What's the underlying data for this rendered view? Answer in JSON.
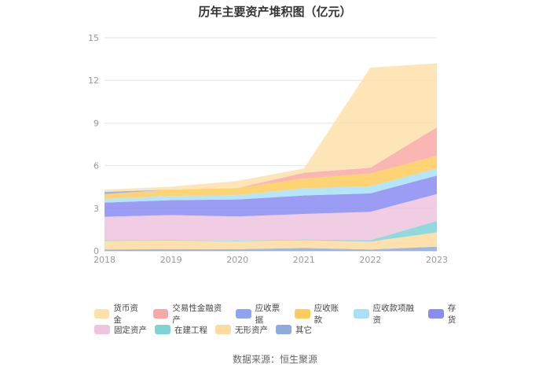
{
  "chart_data": {
    "type": "area",
    "stacked": true,
    "title": "历年主要资产堆积图（亿元）",
    "categories": [
      "2018",
      "2019",
      "2020",
      "2021",
      "2022",
      "2023"
    ],
    "ylim": [
      0,
      15
    ],
    "yticks": [
      0,
      3,
      6,
      9,
      12,
      15
    ],
    "series": [
      {
        "name": "其它",
        "color": "#8FAADC",
        "values": [
          0.1,
          0.12,
          0.12,
          0.2,
          0.1,
          0.3
        ]
      },
      {
        "name": "无形资产",
        "color": "#FDDB9E",
        "values": [
          0.6,
          0.6,
          0.55,
          0.55,
          0.55,
          1.0
        ]
      },
      {
        "name": "在建工程",
        "color": "#7DD3D8",
        "values": [
          0.05,
          0.05,
          0.05,
          0.05,
          0.1,
          0.8
        ]
      },
      {
        "name": "固定资产",
        "color": "#EEC4DE",
        "values": [
          1.65,
          1.75,
          1.7,
          1.8,
          2.0,
          1.9
        ]
      },
      {
        "name": "存货",
        "color": "#8A8CF2",
        "values": [
          1.0,
          1.05,
          1.2,
          1.3,
          1.3,
          1.3
        ]
      },
      {
        "name": "应收款项融资",
        "color": "#A8E0F8",
        "values": [
          0.25,
          0.3,
          0.3,
          0.5,
          0.5,
          0.5
        ]
      },
      {
        "name": "应收账款",
        "color": "#FDCB5C",
        "values": [
          0.35,
          0.45,
          0.5,
          0.7,
          0.9,
          0.9
        ]
      },
      {
        "name": "应收票据",
        "color": "#8FA3F2",
        "values": [
          0.15,
          0.0,
          0.0,
          0.0,
          0.0,
          0.0
        ]
      },
      {
        "name": "交易性金融资产",
        "color": "#F8A9A6",
        "values": [
          0.0,
          0.0,
          0.0,
          0.4,
          0.4,
          2.0
        ]
      },
      {
        "name": "货币资金",
        "color": "#FDE0AA",
        "values": [
          0.15,
          0.2,
          0.5,
          0.3,
          7.05,
          4.5
        ]
      }
    ],
    "legend": {
      "placement": "bottom",
      "rows": [
        [
          "货币资金",
          "交易性金融资产",
          "应收票据",
          "应收账款",
          "应收款项融资",
          "存货"
        ],
        [
          "固定资产",
          "在建工程",
          "无形资产",
          "其它"
        ]
      ]
    }
  },
  "source": "数据来源：恒生聚源"
}
